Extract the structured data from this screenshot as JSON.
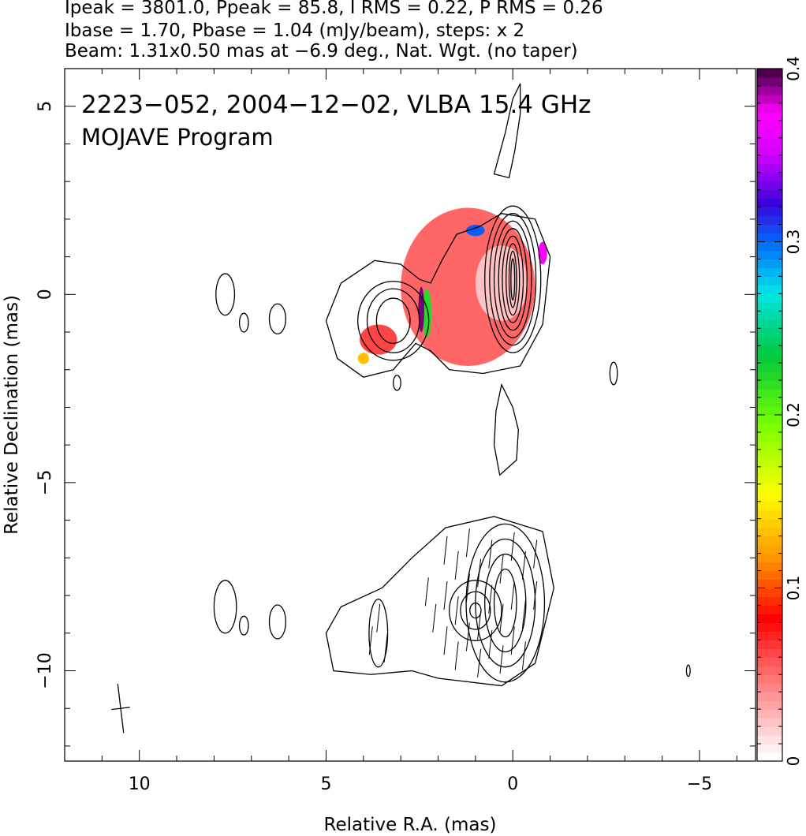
{
  "header": {
    "line1": "Ipeak = 3801.0, Ppeak = 85.8, I RMS = 0.22, P RMS = 0.26",
    "line2": "Ibase = 1.70, Pbase = 1.04 (mJy/beam), steps: x 2",
    "line3": "Beam: 1.31x0.50 mas at −6.9 deg., Nat. Wgt. (no taper)"
  },
  "chart_data": {
    "type": "heatmap",
    "title_line1": "2223−052, 2004−12−02, VLBA 15.4 GHz",
    "title_line2": "MOJAVE Program",
    "xlabel": "Relative R.A. (mas)",
    "ylabel": "Relative Declination (mas)",
    "xlim": [
      12,
      -6.5
    ],
    "ylim": [
      -12.4,
      6.0
    ],
    "x_ticks": [
      10,
      5,
      0,
      -5
    ],
    "x_tick_labels": [
      "10",
      "5",
      "0",
      "−5"
    ],
    "y_ticks": [
      5,
      0,
      -5,
      -10
    ],
    "y_tick_labels": [
      "5",
      "0",
      "−5",
      "−10"
    ],
    "colorbar": {
      "range": [
        0,
        0.4
      ],
      "ticks": [
        0,
        0.1,
        0.2,
        0.3,
        0.4
      ],
      "tick_labels": [
        "0",
        "0.1",
        "0.2",
        "0.3",
        "0.4"
      ]
    },
    "beam": {
      "major_mas": 1.31,
      "minor_mas": 0.5,
      "pa_deg": -6.9,
      "center": [
        10.5,
        -11.0
      ]
    },
    "upper_panel": {
      "core": [
        0.0,
        0.4
      ],
      "contour_rings": [
        [
          0.05,
          0.55
        ],
        [
          0.1,
          0.75
        ],
        [
          0.18,
          0.95
        ],
        [
          0.28,
          1.15
        ],
        [
          0.38,
          1.35
        ],
        [
          0.5,
          1.55
        ],
        [
          0.62,
          1.75
        ],
        [
          0.75,
          1.95
        ]
      ],
      "knot": [
        3.2,
        -0.7
      ],
      "knot_rings": [
        [
          0.45,
          0.6
        ],
        [
          0.7,
          0.85
        ],
        [
          0.95,
          1.05
        ]
      ],
      "envelope": [
        [
          0.9,
          1.8
        ],
        [
          0.3,
          2.15
        ],
        [
          -0.6,
          2.0
        ],
        [
          -1.0,
          1.0
        ],
        [
          -0.8,
          -0.8
        ],
        [
          -0.2,
          -1.9
        ],
        [
          0.8,
          -2.1
        ],
        [
          1.7,
          -2.0
        ],
        [
          2.2,
          -1.5
        ],
        [
          2.6,
          -1.3
        ],
        [
          3.2,
          -2.0
        ],
        [
          4.0,
          -2.2
        ],
        [
          4.7,
          -1.7
        ],
        [
          5.0,
          -0.7
        ],
        [
          4.6,
          0.3
        ],
        [
          3.7,
          0.9
        ],
        [
          3.0,
          0.8
        ],
        [
          2.5,
          0.4
        ],
        [
          2.2,
          0.3
        ],
        [
          1.9,
          0.9
        ],
        [
          1.5,
          1.6
        ]
      ],
      "islands": [
        [
          7.7,
          0.0,
          0.25,
          0.55
        ],
        [
          7.2,
          -0.75,
          0.12,
          0.25
        ],
        [
          6.3,
          -0.65,
          0.22,
          0.4
        ],
        [
          3.1,
          -2.35,
          0.1,
          0.2
        ],
        [
          -2.7,
          -2.1,
          0.1,
          0.3
        ],
        [
          -4.7,
          -10.0,
          0.05,
          0.15
        ]
      ],
      "northern_lobe": [
        [
          0.2,
          4.3
        ],
        [
          0.0,
          5.2
        ],
        [
          -0.2,
          5.6
        ],
        [
          -0.2,
          4.8
        ],
        [
          -0.05,
          3.8
        ],
        [
          0.1,
          3.1
        ],
        [
          0.5,
          3.2
        ]
      ],
      "southern_lobe": [
        [
          0.3,
          -2.4
        ],
        [
          0.0,
          -3.0
        ],
        [
          -0.15,
          -3.6
        ],
        [
          -0.1,
          -4.4
        ],
        [
          0.35,
          -4.8
        ],
        [
          0.5,
          -4.0
        ],
        [
          0.45,
          -3.1
        ]
      ],
      "polarization_patches": [
        {
          "x": 1.2,
          "y": 0.2,
          "rx": 1.8,
          "ry": 2.1,
          "frac": 0.05
        },
        {
          "x": 0.3,
          "y": 0.3,
          "rx": 0.7,
          "ry": 1.0,
          "frac": 0.02
        },
        {
          "x": 3.6,
          "y": -1.2,
          "rx": 0.5,
          "ry": 0.4,
          "frac": 0.06
        },
        {
          "x": 4.0,
          "y": -1.7,
          "rx": 0.15,
          "ry": 0.15,
          "frac": 0.13
        },
        {
          "x": 2.3,
          "y": -0.5,
          "rx": 0.12,
          "ry": 0.65,
          "frac": 0.22
        },
        {
          "x": 2.45,
          "y": -0.4,
          "rx": 0.08,
          "ry": 0.6,
          "frac": 0.39
        },
        {
          "x": 1.0,
          "y": 1.7,
          "rx": 0.25,
          "ry": 0.15,
          "frac": 0.3
        },
        {
          "x": -0.8,
          "y": 1.1,
          "rx": 0.12,
          "ry": 0.3,
          "frac": 0.37
        }
      ]
    },
    "lower_panel": {
      "core": [
        0.2,
        -8.2
      ],
      "contour_rings": [
        [
          0.3,
          0.9
        ],
        [
          0.55,
          1.3
        ],
        [
          0.8,
          1.7
        ],
        [
          1.05,
          2.1
        ]
      ],
      "secondary": [
        1.0,
        -8.4
      ],
      "secondary_rings": [
        [
          0.15,
          0.2
        ],
        [
          0.4,
          0.5
        ],
        [
          0.7,
          0.8
        ]
      ],
      "envelope": [
        [
          0.5,
          -5.9
        ],
        [
          -0.8,
          -6.3
        ],
        [
          -1.1,
          -7.8
        ],
        [
          -0.6,
          -9.8
        ],
        [
          0.3,
          -10.4
        ],
        [
          2.0,
          -10.2
        ],
        [
          2.7,
          -10.0
        ],
        [
          3.8,
          -10.1
        ],
        [
          4.8,
          -10.0
        ],
        [
          5.0,
          -9.0
        ],
        [
          4.6,
          -8.3
        ],
        [
          3.5,
          -7.8
        ],
        [
          2.7,
          -7.0
        ],
        [
          1.8,
          -6.2
        ]
      ],
      "islands": [
        [
          7.7,
          -8.3,
          0.3,
          0.7
        ],
        [
          7.2,
          -8.8,
          0.12,
          0.25
        ],
        [
          6.3,
          -8.7,
          0.22,
          0.45
        ],
        [
          3.6,
          -9.0,
          0.25,
          0.9
        ]
      ],
      "evpa_ticks": [
        [
          1.8,
          -6.8
        ],
        [
          1.5,
          -7.2
        ],
        [
          1.2,
          -6.6
        ],
        [
          0.9,
          -7.4
        ],
        [
          0.6,
          -6.9
        ],
        [
          0.3,
          -7.3
        ],
        [
          0.0,
          -6.7
        ],
        [
          -0.3,
          -7.2
        ],
        [
          -0.6,
          -6.9
        ],
        [
          1.8,
          -8.0
        ],
        [
          1.5,
          -8.4
        ],
        [
          1.2,
          -7.8
        ],
        [
          0.9,
          -8.8
        ],
        [
          0.6,
          -8.1
        ],
        [
          0.3,
          -8.6
        ],
        [
          0.0,
          -8.0
        ],
        [
          -0.3,
          -8.5
        ],
        [
          -0.6,
          -8.0
        ],
        [
          1.8,
          -9.2
        ],
        [
          1.5,
          -9.6
        ],
        [
          1.2,
          -9.1
        ],
        [
          0.9,
          -9.8
        ],
        [
          0.6,
          -9.3
        ],
        [
          0.3,
          -9.7
        ],
        [
          0.0,
          -9.2
        ],
        [
          -0.3,
          -9.6
        ],
        [
          3.6,
          -8.6
        ],
        [
          3.8,
          -9.2
        ],
        [
          3.4,
          -9.4
        ],
        [
          2.3,
          -7.9
        ],
        [
          2.1,
          -8.6
        ]
      ]
    }
  }
}
